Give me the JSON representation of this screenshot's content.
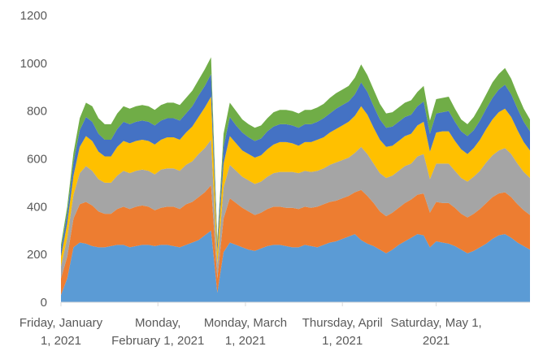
{
  "chart_data": {
    "type": "area",
    "stacked": true,
    "title": "",
    "xlabel": "",
    "ylabel": "",
    "ylim": [
      0,
      1200
    ],
    "yticks": [
      0,
      200,
      400,
      600,
      800,
      1000,
      1200
    ],
    "grid": false,
    "legend": "none",
    "x_tick_labels": [
      {
        "date": "2021-01-01",
        "lines": [
          "Friday, January",
          "1, 2021"
        ]
      },
      {
        "date": "2021-02-01",
        "lines": [
          "Monday,",
          "February 1, 2021"
        ]
      },
      {
        "date": "2021-03-01",
        "lines": [
          "Monday, March",
          "1, 2021"
        ]
      },
      {
        "date": "2021-04-01",
        "lines": [
          "Thursday, April",
          "1, 2021"
        ]
      },
      {
        "date": "2021-05-01",
        "lines": [
          "Saturday, May 1,",
          "2021"
        ]
      }
    ],
    "x": [
      "2021-01-01",
      "2021-01-03",
      "2021-01-05",
      "2021-01-07",
      "2021-01-09",
      "2021-01-11",
      "2021-01-13",
      "2021-01-15",
      "2021-01-17",
      "2021-01-19",
      "2021-01-21",
      "2021-01-23",
      "2021-01-25",
      "2021-01-27",
      "2021-01-29",
      "2021-01-31",
      "2021-02-02",
      "2021-02-04",
      "2021-02-06",
      "2021-02-08",
      "2021-02-10",
      "2021-02-12",
      "2021-02-14",
      "2021-02-16",
      "2021-02-18",
      "2021-02-20",
      "2021-02-22",
      "2021-02-24",
      "2021-02-26",
      "2021-02-28",
      "2021-03-02",
      "2021-03-04",
      "2021-03-06",
      "2021-03-08",
      "2021-03-10",
      "2021-03-12",
      "2021-03-14",
      "2021-03-16",
      "2021-03-18",
      "2021-03-20",
      "2021-03-22",
      "2021-03-24",
      "2021-03-26",
      "2021-03-28",
      "2021-03-30",
      "2021-04-01",
      "2021-04-03",
      "2021-04-05",
      "2021-04-07",
      "2021-04-09",
      "2021-04-11",
      "2021-04-13",
      "2021-04-15",
      "2021-04-17",
      "2021-04-19",
      "2021-04-21",
      "2021-04-23",
      "2021-04-25",
      "2021-04-27",
      "2021-04-29",
      "2021-05-01",
      "2021-05-03",
      "2021-05-05",
      "2021-05-07",
      "2021-05-09",
      "2021-05-11",
      "2021-05-13",
      "2021-05-15",
      "2021-05-17",
      "2021-05-19",
      "2021-05-21",
      "2021-05-23",
      "2021-05-25",
      "2021-05-27",
      "2021-05-29",
      "2021-05-31"
    ],
    "series": [
      {
        "color": "#5B9BD5",
        "values": [
          30,
          100,
          230,
          250,
          245,
          235,
          230,
          230,
          235,
          240,
          240,
          230,
          235,
          240,
          240,
          235,
          240,
          240,
          235,
          230,
          240,
          250,
          260,
          280,
          300,
          40,
          210,
          250,
          240,
          230,
          220,
          215,
          225,
          235,
          240,
          240,
          235,
          230,
          230,
          240,
          235,
          230,
          240,
          250,
          255,
          265,
          275,
          285,
          260,
          245,
          235,
          220,
          205,
          220,
          240,
          255,
          270,
          285,
          280,
          230,
          255,
          250,
          245,
          235,
          220,
          205,
          215,
          230,
          245,
          265,
          280,
          285,
          270,
          250,
          235,
          220
        ]
      },
      {
        "color": "#ED7D31",
        "values": [
          70,
          90,
          120,
          160,
          175,
          170,
          150,
          140,
          135,
          150,
          160,
          160,
          165,
          165,
          160,
          150,
          155,
          160,
          165,
          160,
          170,
          170,
          180,
          180,
          190,
          60,
          140,
          185,
          175,
          165,
          160,
          150,
          150,
          155,
          160,
          160,
          160,
          165,
          160,
          160,
          160,
          170,
          170,
          170,
          170,
          170,
          170,
          175,
          210,
          200,
          180,
          160,
          155,
          155,
          155,
          160,
          160,
          165,
          175,
          145,
          165,
          165,
          170,
          160,
          150,
          150,
          155,
          160,
          170,
          175,
          175,
          175,
          170,
          160,
          150,
          145
        ]
      },
      {
        "color": "#A5A5A5",
        "values": [
          50,
          80,
          100,
          130,
          150,
          145,
          135,
          130,
          130,
          140,
          150,
          150,
          150,
          150,
          150,
          150,
          160,
          160,
          160,
          160,
          165,
          170,
          180,
          185,
          190,
          60,
          130,
          140,
          135,
          130,
          130,
          130,
          130,
          135,
          140,
          145,
          150,
          150,
          150,
          150,
          150,
          150,
          150,
          155,
          160,
          160,
          160,
          165,
          180,
          175,
          165,
          160,
          160,
          155,
          155,
          155,
          150,
          160,
          165,
          140,
          160,
          165,
          165,
          155,
          150,
          150,
          155,
          160,
          170,
          175,
          180,
          185,
          180,
          170,
          160,
          155
        ]
      },
      {
        "color": "#FFC000",
        "values": [
          40,
          60,
          80,
          110,
          125,
          125,
          115,
          110,
          110,
          120,
          125,
          125,
          125,
          125,
          125,
          125,
          125,
          130,
          130,
          130,
          135,
          145,
          155,
          170,
          180,
          50,
          100,
          120,
          115,
          110,
          110,
          110,
          110,
          115,
          120,
          125,
          125,
          120,
          115,
          120,
          125,
          130,
          130,
          135,
          140,
          145,
          150,
          155,
          170,
          165,
          150,
          140,
          130,
          125,
          125,
          125,
          125,
          130,
          135,
          115,
          130,
          135,
          135,
          125,
          120,
          115,
          120,
          130,
          140,
          150,
          160,
          165,
          155,
          140,
          125,
          115
        ]
      },
      {
        "color": "#4472C4",
        "values": [
          30,
          40,
          55,
          70,
          80,
          80,
          75,
          70,
          70,
          75,
          80,
          80,
          80,
          80,
          80,
          80,
          80,
          80,
          80,
          80,
          80,
          85,
          90,
          90,
          95,
          30,
          70,
          80,
          75,
          75,
          70,
          70,
          70,
          75,
          75,
          75,
          75,
          75,
          75,
          75,
          75,
          75,
          80,
          80,
          85,
          85,
          85,
          90,
          100,
          95,
          90,
          85,
          80,
          80,
          80,
          80,
          80,
          80,
          85,
          75,
          80,
          80,
          85,
          80,
          75,
          75,
          75,
          80,
          85,
          90,
          95,
          100,
          95,
          90,
          85,
          80
        ]
      },
      {
        "color": "#70AD47",
        "values": [
          20,
          30,
          40,
          50,
          60,
          65,
          65,
          65,
          65,
          65,
          65,
          65,
          65,
          65,
          65,
          65,
          65,
          65,
          65,
          65,
          65,
          65,
          65,
          70,
          70,
          20,
          55,
          60,
          60,
          55,
          55,
          55,
          55,
          55,
          60,
          60,
          60,
          60,
          60,
          60,
          60,
          60,
          60,
          65,
          65,
          65,
          65,
          70,
          75,
          70,
          70,
          65,
          60,
          60,
          60,
          60,
          60,
          60,
          65,
          55,
          60,
          60,
          60,
          55,
          50,
          50,
          55,
          60,
          60,
          65,
          65,
          70,
          65,
          60,
          55,
          50
        ]
      }
    ]
  }
}
